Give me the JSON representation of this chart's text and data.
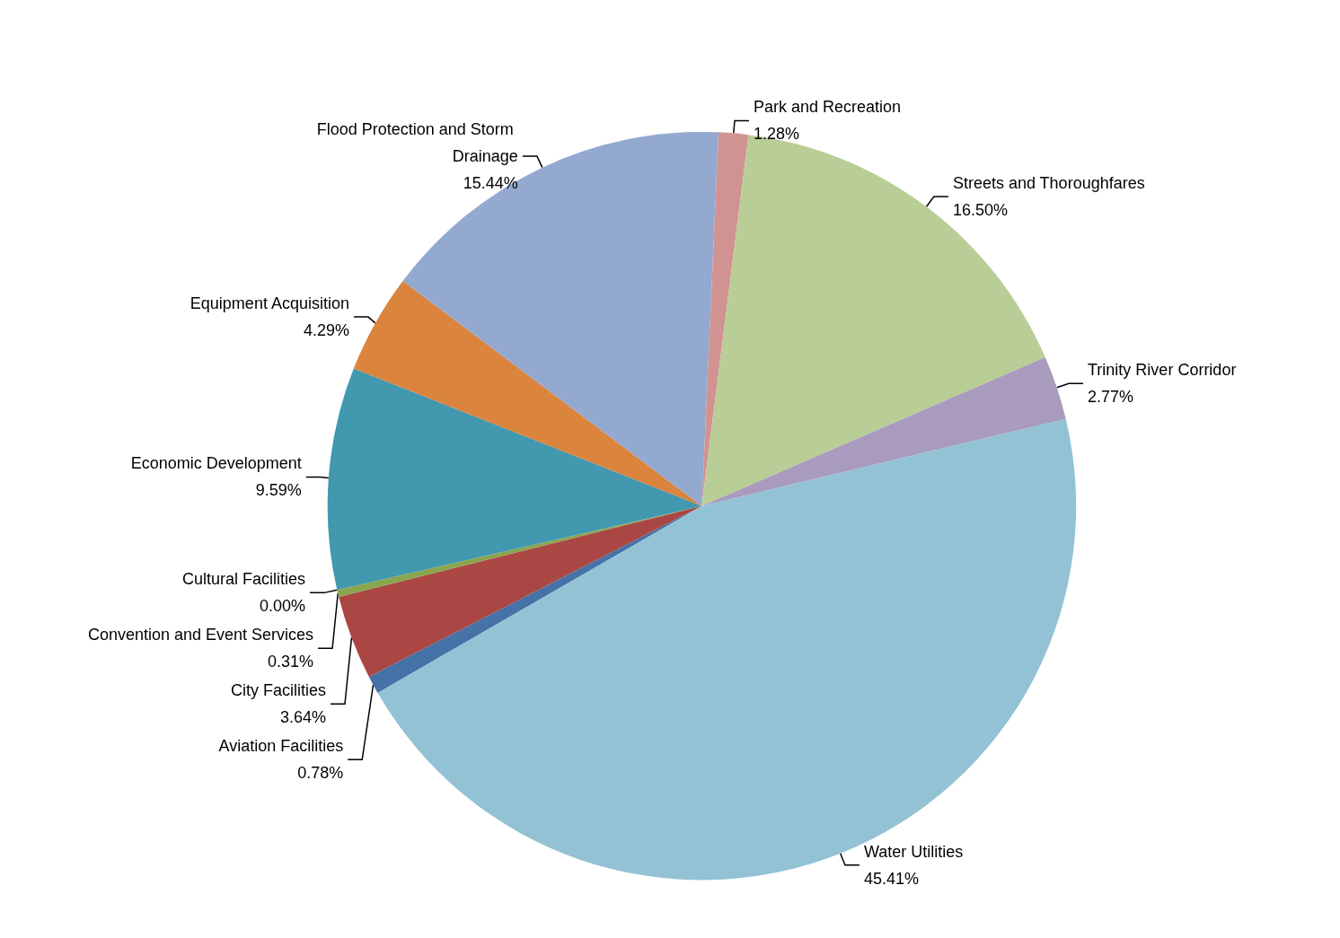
{
  "chart_data": {
    "type": "pie",
    "categories": [
      "Aviation Facilities",
      "City Facilities",
      "Convention and Event Services",
      "Cultural Facilities",
      "Economic Development",
      "Equipment Acquisition",
      "Flood Protection and Storm Drainage",
      "Park and Recreation",
      "Streets and Thoroughfares",
      "Trinity River Corridor",
      "Water Utilities"
    ],
    "values": [
      0.78,
      3.64,
      0.31,
      0.0,
      9.59,
      4.29,
      15.44,
      1.28,
      16.5,
      2.77,
      45.41
    ],
    "value_labels": [
      "0.78%",
      "3.64%",
      "0.31%",
      "0.00%",
      "9.59%",
      "4.29%",
      "15.44%",
      "1.28%",
      "16.50%",
      "2.77%",
      "45.41%"
    ],
    "colors": [
      "#4572a7",
      "#aa4643",
      "#89a54e",
      "#71588f",
      "#4198af",
      "#db843d",
      "#93a9cf",
      "#d19392",
      "#b9cd96",
      "#a99bbd",
      "#92c2d4"
    ]
  }
}
